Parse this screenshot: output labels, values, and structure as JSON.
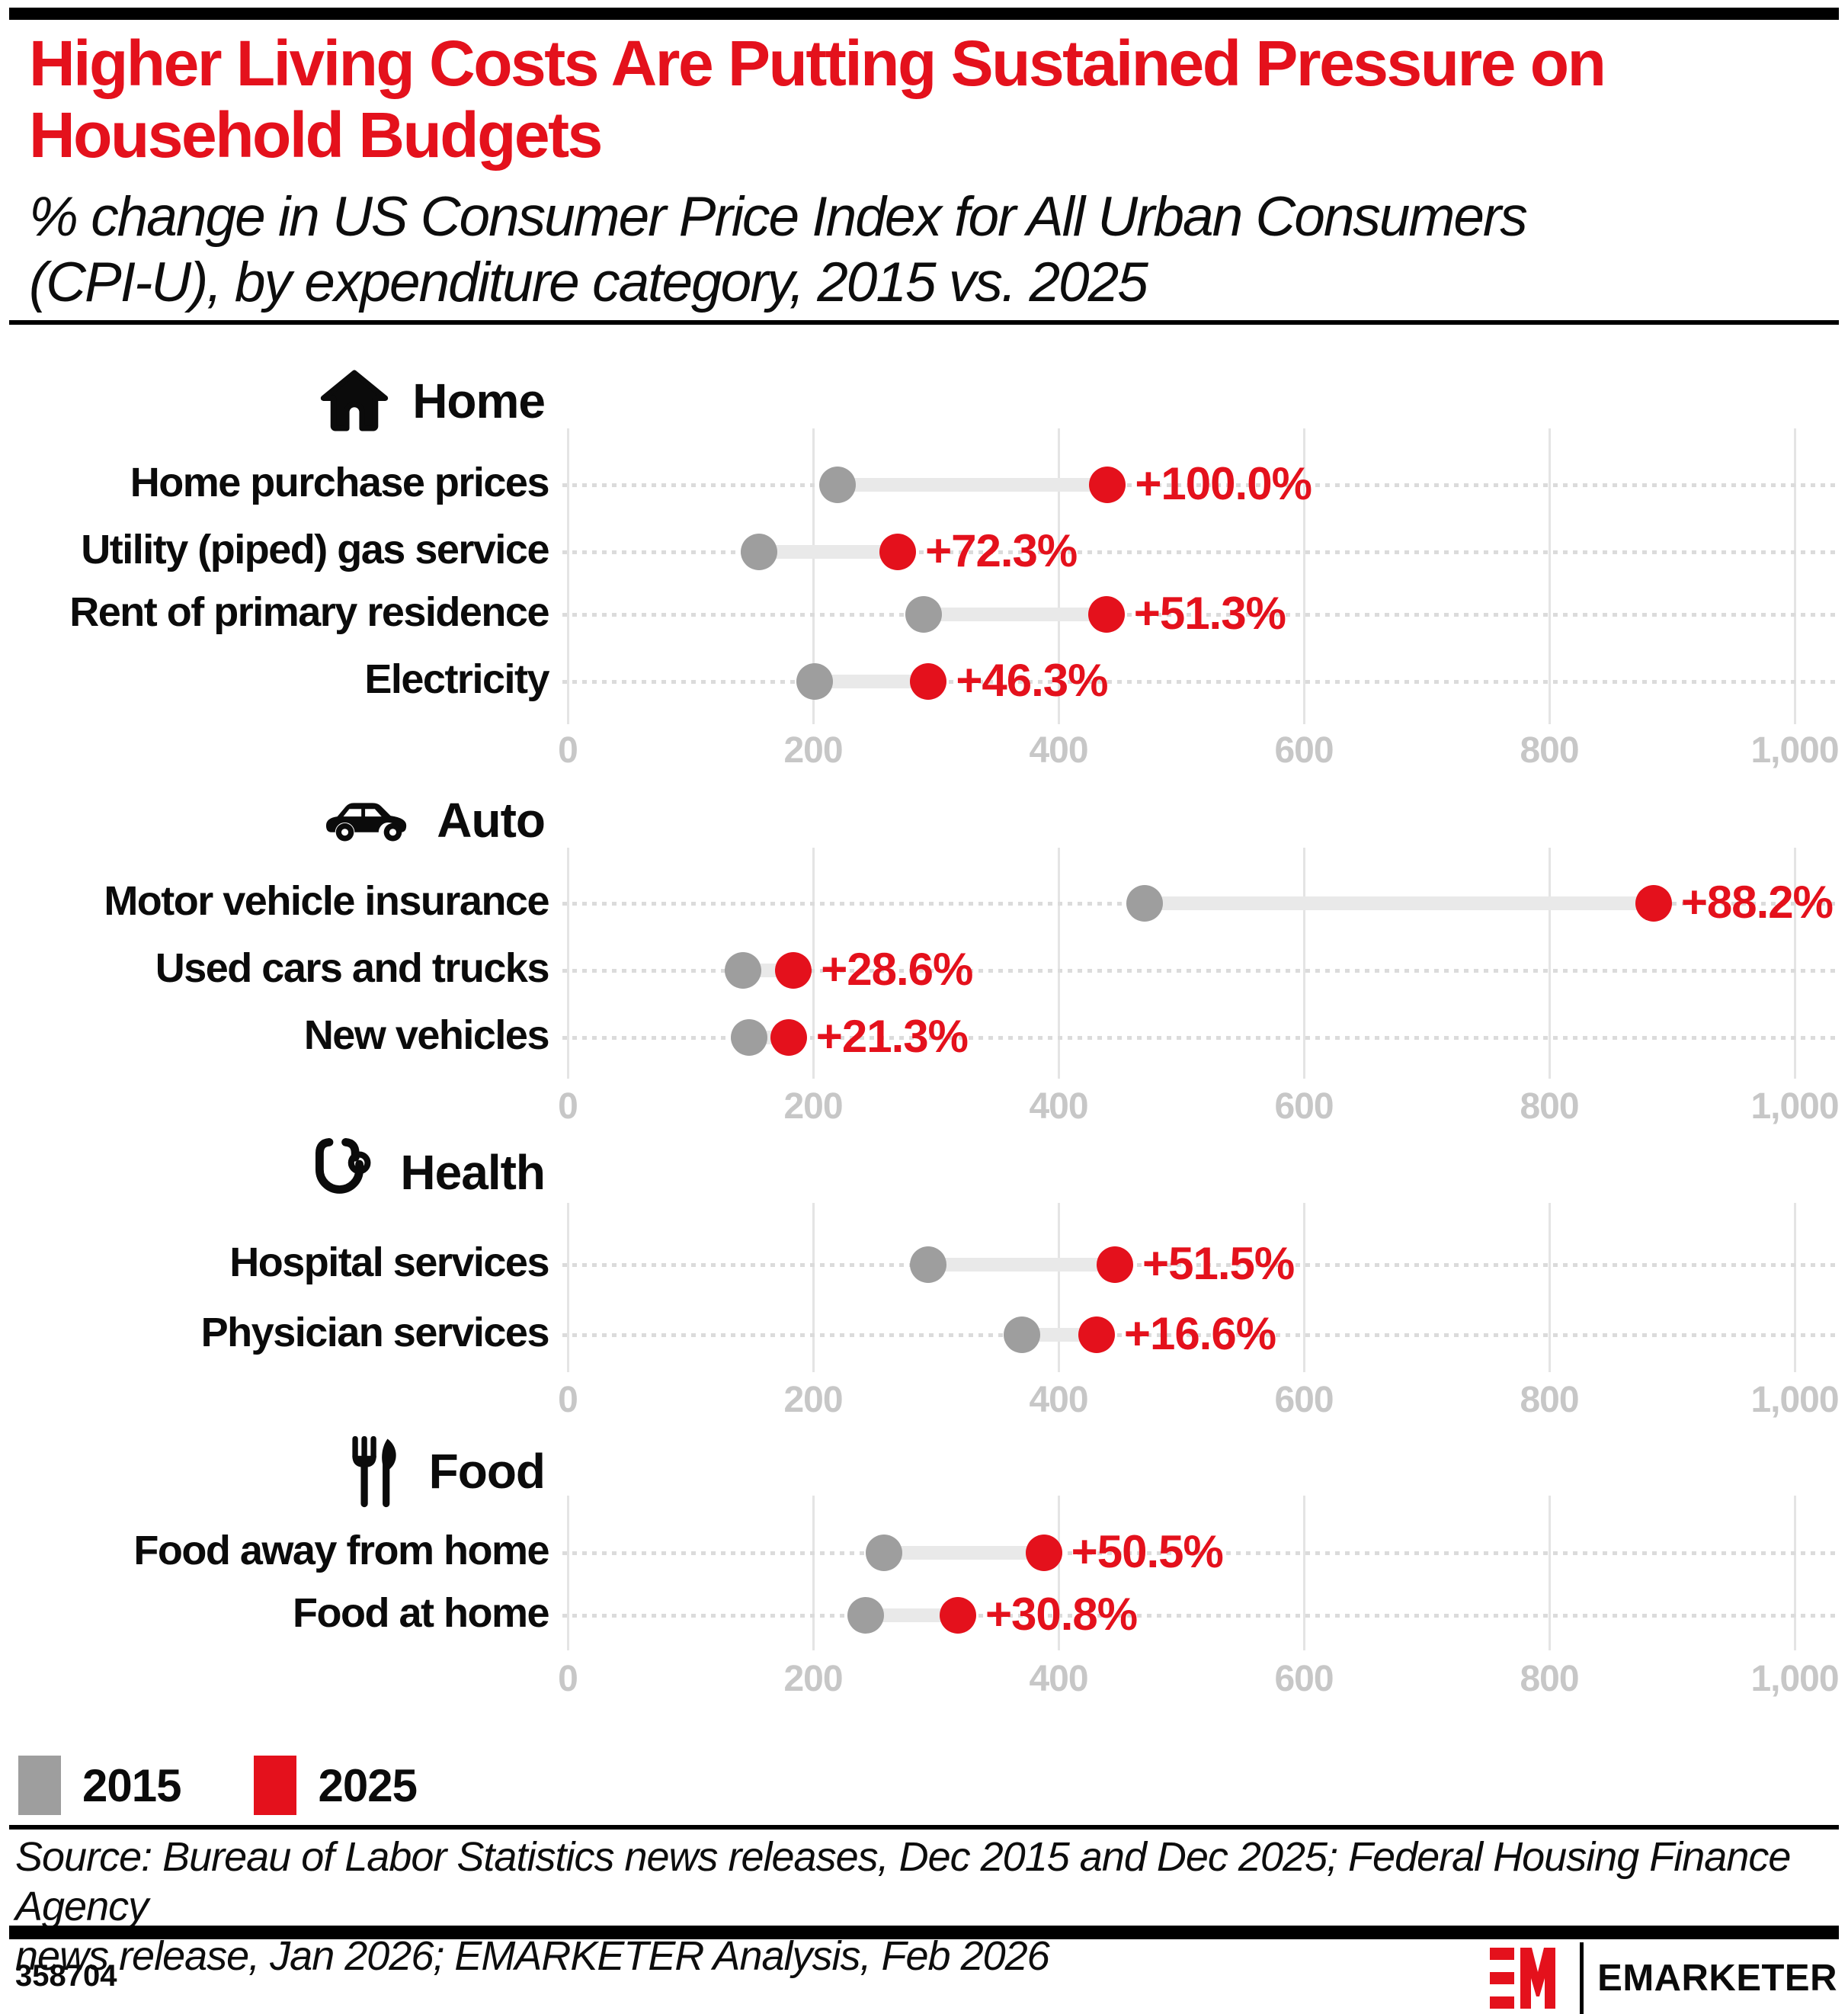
{
  "header": {
    "title": "Higher Living Costs Are Putting Sustained Pressure on\nHousehold Budgets",
    "subtitle": "% change in US Consumer Price Index for All Urban Consumers\n(CPI-U), by expenditure category, 2015 vs. 2025"
  },
  "chart_data": {
    "type": "dumbbell",
    "x_axis": {
      "tick_labels": [
        "0",
        "200",
        "400",
        "600",
        "800",
        "1,000"
      ],
      "tick_values": [
        0,
        200,
        400,
        600,
        800,
        1000
      ],
      "min": 0,
      "max": 1000,
      "grid": true
    },
    "series_years": [
      "2015",
      "2025"
    ],
    "sections": [
      {
        "name": "Home",
        "icon": "house-icon",
        "rows": [
          {
            "label": "Home purchase prices",
            "v2015": 220,
            "v2025": 440,
            "change": "+100.0%"
          },
          {
            "label": "Utility (piped) gas service",
            "v2015": 156,
            "v2025": 269,
            "change": "+72.3%"
          },
          {
            "label": "Rent of primary residence",
            "v2015": 290,
            "v2025": 439,
            "change": "+51.3%"
          },
          {
            "label": "Electricity",
            "v2015": 201,
            "v2025": 294,
            "change": "+46.3%"
          }
        ]
      },
      {
        "name": "Auto",
        "icon": "car-icon",
        "rows": [
          {
            "label": "Motor vehicle insurance",
            "v2015": 470,
            "v2025": 885,
            "change": "+88.2%"
          },
          {
            "label": "Used cars and trucks",
            "v2015": 143,
            "v2025": 184,
            "change": "+28.6%"
          },
          {
            "label": "New vehicles",
            "v2015": 148,
            "v2025": 180,
            "change": "+21.3%"
          }
        ]
      },
      {
        "name": "Health",
        "icon": "stethoscope-icon",
        "rows": [
          {
            "label": "Hospital services",
            "v2015": 294,
            "v2025": 446,
            "change": "+51.5%"
          },
          {
            "label": "Physician services",
            "v2015": 370,
            "v2025": 431,
            "change": "+16.6%"
          }
        ]
      },
      {
        "name": "Food",
        "icon": "fork-knife-icon",
        "rows": [
          {
            "label": "Food away from home",
            "v2015": 258,
            "v2025": 388,
            "change": "+50.5%"
          },
          {
            "label": "Food at home",
            "v2015": 243,
            "v2025": 318,
            "change": "+30.8%"
          }
        ]
      }
    ]
  },
  "legend": [
    {
      "label": "2015",
      "color": "#9e9e9e"
    },
    {
      "label": "2025",
      "color": "#e4111c"
    }
  ],
  "footer": {
    "source": "Source: Bureau of Labor Statistics news releases, Dec 2015 and Dec 2025; Federal Housing Finance Agency\nnews release, Jan 2026; EMARKETER Analysis, Feb 2026",
    "chart_id": "358704",
    "brand": "EMARKETER",
    "logo_mark": "EM"
  },
  "colors": {
    "accent_red": "#e4111c",
    "gray_2015": "#9e9e9e",
    "axis_text": "#c7c7c7",
    "gridline": "#e4e4e4",
    "connector": "#e9e9e9",
    "black": "#000000"
  }
}
